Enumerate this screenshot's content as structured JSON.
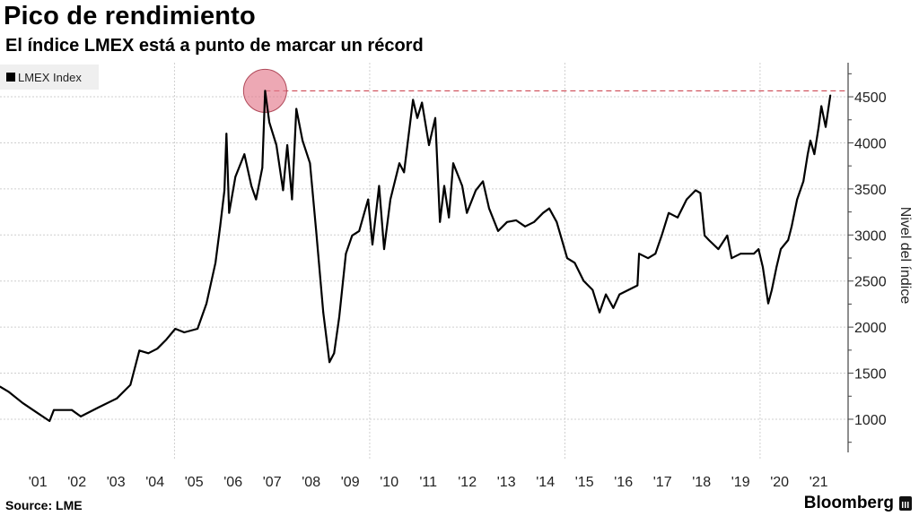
{
  "header": {
    "title": "Pico de rendimiento",
    "subtitle": "El índice LMEX está a punto de marcar un récord"
  },
  "legend": {
    "label": "LMEX Index"
  },
  "footer": {
    "source": "Source: LME",
    "brand": "Bloomberg"
  },
  "colors": {
    "line": "#000000",
    "highlight": "#e3798c",
    "dashed": "#c8323f",
    "grid": "#cfcfcf"
  },
  "chart_data": {
    "type": "line",
    "title": "Pico de rendimiento",
    "subtitle": "El índice LMEX está a punto de marcar un récord",
    "xlabel": "",
    "ylabel": "Nivel del índice",
    "ylim": [
      640,
      4870
    ],
    "xlim": [
      2000.53,
      2022.14
    ],
    "y_ticks": [
      1000,
      1500,
      2000,
      2500,
      3000,
      3500,
      4000,
      4500
    ],
    "x_tick_labels": [
      "'01",
      "'02",
      "'03",
      "'04",
      "'05",
      "'06",
      "'07",
      "'08",
      "'09",
      "'10",
      "'11",
      "'12",
      "'13",
      "'14",
      "'15",
      "'16",
      "'17",
      "'18",
      "'19",
      "'20",
      "'21"
    ],
    "grid": true,
    "legend_position": "top-left",
    "annotation": {
      "type": "record-peak",
      "x": 2007.32,
      "y": 4565
    },
    "series": [
      {
        "name": "LMEX Index",
        "x": [
          2000.53,
          2000.76,
          2001.11,
          2001.45,
          2001.8,
          2001.91,
          2002.37,
          2002.6,
          2003.06,
          2003.52,
          2003.87,
          2004.1,
          2004.33,
          2004.56,
          2004.79,
          2005.02,
          2005.25,
          2005.59,
          2005.82,
          2006.05,
          2006.17,
          2006.28,
          2006.33,
          2006.4,
          2006.56,
          2006.79,
          2006.97,
          2007.09,
          2007.25,
          2007.32,
          2007.43,
          2007.61,
          2007.78,
          2007.89,
          2008.01,
          2008.12,
          2008.28,
          2008.47,
          2008.63,
          2008.81,
          2008.97,
          2009.09,
          2009.22,
          2009.39,
          2009.55,
          2009.73,
          2009.96,
          2010.07,
          2010.24,
          2010.37,
          2010.53,
          2010.76,
          2010.88,
          2011.11,
          2011.22,
          2011.34,
          2011.52,
          2011.68,
          2011.8,
          2011.91,
          2012.03,
          2012.14,
          2012.37,
          2012.49,
          2012.72,
          2012.9,
          2013.06,
          2013.29,
          2013.52,
          2013.75,
          2013.98,
          2014.21,
          2014.44,
          2014.6,
          2014.79,
          2015.06,
          2015.25,
          2015.48,
          2015.71,
          2015.89,
          2016.05,
          2016.24,
          2016.4,
          2016.63,
          2016.86,
          2016.9,
          2017.13,
          2017.32,
          2017.48,
          2017.66,
          2017.89,
          2018.12,
          2018.35,
          2018.47,
          2018.58,
          2018.69,
          2018.93,
          2019.16,
          2019.27,
          2019.5,
          2019.84,
          2019.96,
          2020.07,
          2020.21,
          2020.3,
          2020.42,
          2020.53,
          2020.72,
          2020.81,
          2020.95,
          2021.11,
          2021.22,
          2021.29,
          2021.39,
          2021.5,
          2021.57,
          2021.68,
          2021.8
        ],
        "values": [
          1354,
          1295,
          1177,
          1080,
          980,
          1100,
          1100,
          1030,
          1130,
          1225,
          1373,
          1746,
          1716,
          1766,
          1864,
          1982,
          1943,
          1982,
          2257,
          2699,
          3092,
          3485,
          4100,
          3239,
          3632,
          3877,
          3533,
          3386,
          3730,
          4565,
          4222,
          3975,
          3485,
          3975,
          3386,
          4369,
          4025,
          3779,
          3043,
          2159,
          1619,
          1717,
          2110,
          2797,
          2994,
          3043,
          3386,
          2896,
          3533,
          2846,
          3386,
          3779,
          3680,
          4467,
          4270,
          4437,
          3975,
          4270,
          3141,
          3533,
          3190,
          3779,
          3533,
          3239,
          3485,
          3583,
          3288,
          3043,
          3141,
          3160,
          3092,
          3141,
          3239,
          3288,
          3141,
          2748,
          2699,
          2502,
          2404,
          2159,
          2355,
          2208,
          2355,
          2404,
          2453,
          2797,
          2748,
          2797,
          2994,
          3239,
          3190,
          3386,
          3485,
          3455,
          2994,
          2945,
          2846,
          2994,
          2748,
          2797,
          2797,
          2846,
          2650,
          2257,
          2404,
          2650,
          2846,
          2945,
          3092,
          3386,
          3583,
          3877,
          4025,
          3877,
          4173,
          4398,
          4173,
          4516
        ]
      }
    ]
  }
}
